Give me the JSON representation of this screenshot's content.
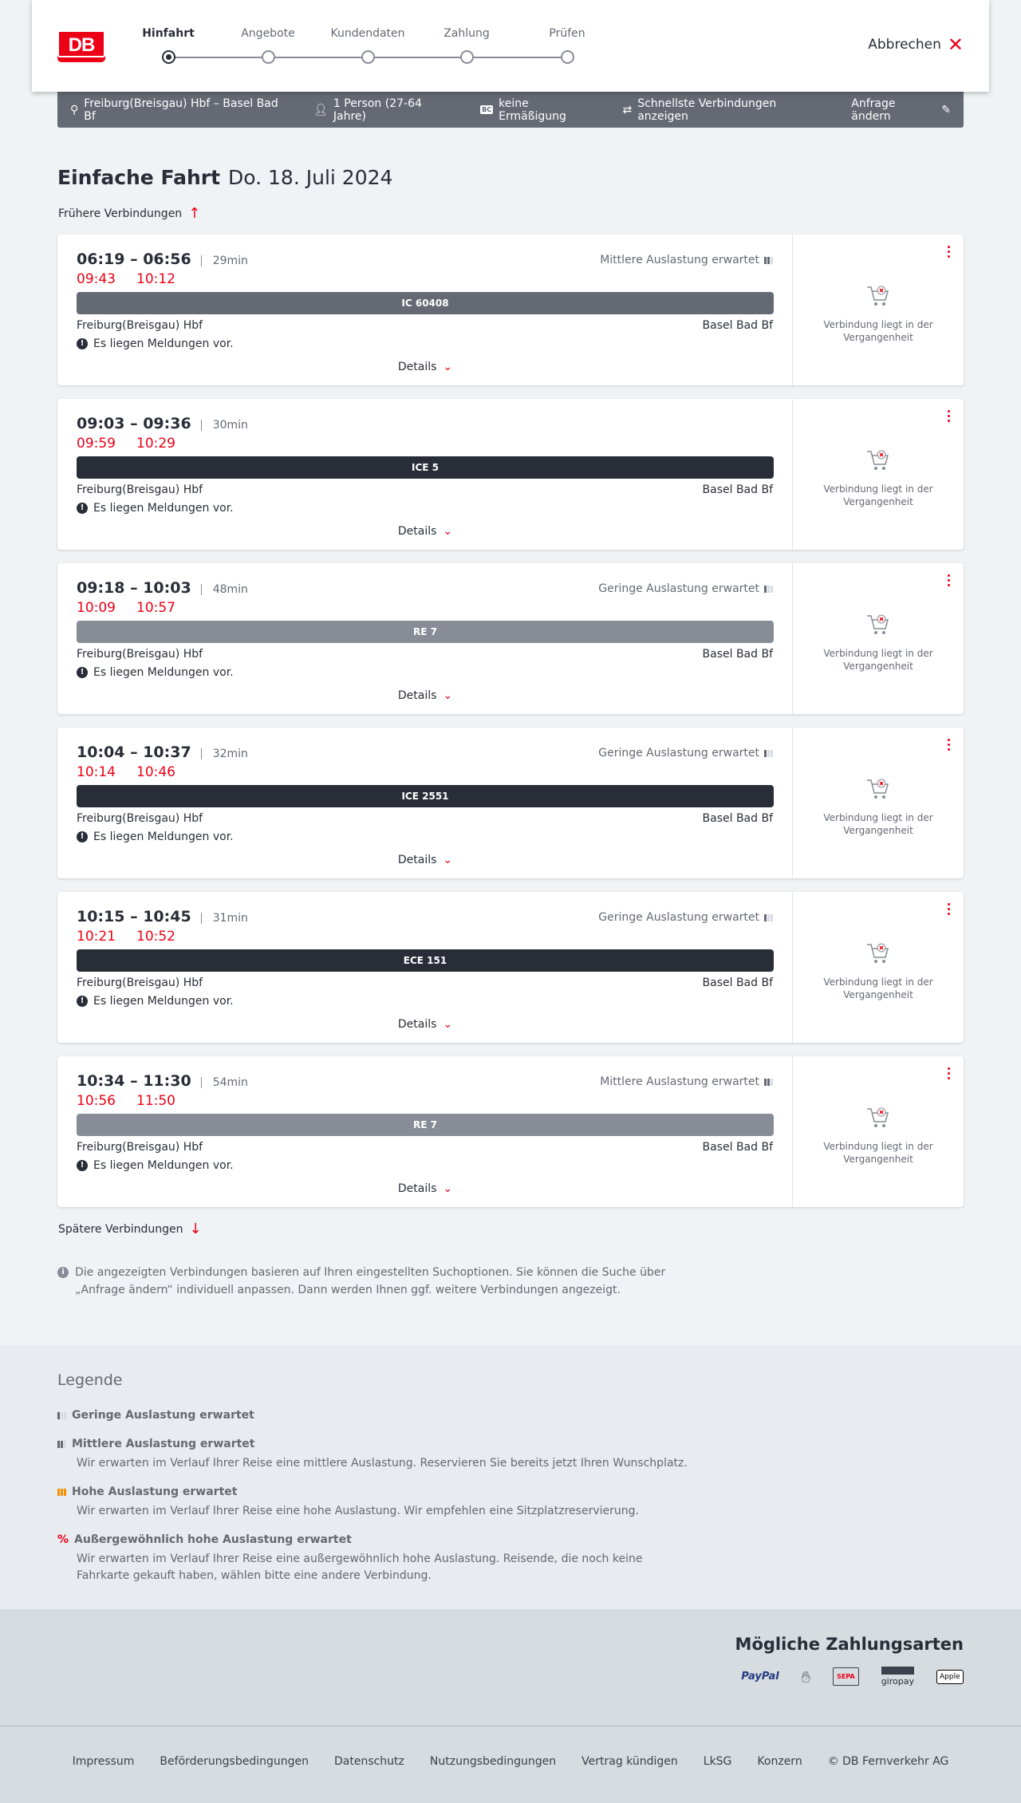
{
  "header": {
    "logo": "DB",
    "steps": [
      "Hinfahrt",
      "Angebote",
      "Kundendaten",
      "Zahlung",
      "Prüfen"
    ],
    "active_step": 0,
    "cancel": "Abbrechen"
  },
  "query": {
    "route": "Freiburg(Breisgau) Hbf – Basel Bad Bf",
    "persons": "1 Person (27-64 Jahre)",
    "discount_badge": "BC",
    "discount": "keine Ermäßigung",
    "fastest": "Schnellste Verbindungen anzeigen",
    "change": "Anfrage ändern"
  },
  "title": {
    "type": "Einfache Fahrt",
    "date": "Do. 18. Juli 2024"
  },
  "earlier": "Frühere Verbindungen",
  "later": "Spätere Verbindungen",
  "colors": {
    "accent": "#ec0016",
    "IC": "#646973",
    "ICE": "#282d37",
    "RE": "#878c96"
  },
  "connections": [
    {
      "time": "06:19 – 06:56",
      "duration": "29min",
      "occupancy": "Mittlere Auslastung erwartet",
      "occ_level": 2,
      "rt_dep": "09:43",
      "rt_arr": "10:12",
      "train": "IC 60408",
      "color": "#646973",
      "from": "Freiburg(Breisgau) Hbf",
      "to": "Basel Bad Bf",
      "message": "Es liegen Meldungen vor.",
      "details": "Details",
      "status": "Verbindung liegt in der Vergangenheit"
    },
    {
      "time": "09:03 – 09:36",
      "duration": "30min",
      "occupancy": "",
      "occ_level": 0,
      "rt_dep": "09:59",
      "rt_arr": "10:29",
      "train": "ICE 5",
      "color": "#282d37",
      "from": "Freiburg(Breisgau) Hbf",
      "to": "Basel Bad Bf",
      "message": "Es liegen Meldungen vor.",
      "details": "Details",
      "status": "Verbindung liegt in der Vergangenheit"
    },
    {
      "time": "09:18 – 10:03",
      "duration": "48min",
      "occupancy": "Geringe Auslastung erwartet",
      "occ_level": 1,
      "rt_dep": "10:09",
      "rt_arr": "10:57",
      "train": "RE 7",
      "color": "#878c96",
      "from": "Freiburg(Breisgau) Hbf",
      "to": "Basel Bad Bf",
      "message": "Es liegen Meldungen vor.",
      "details": "Details",
      "status": "Verbindung liegt in der Vergangenheit"
    },
    {
      "time": "10:04 – 10:37",
      "duration": "32min",
      "occupancy": "Geringe Auslastung erwartet",
      "occ_level": 1,
      "rt_dep": "10:14",
      "rt_arr": "10:46",
      "train": "ICE 2551",
      "color": "#282d37",
      "from": "Freiburg(Breisgau) Hbf",
      "to": "Basel Bad Bf",
      "message": "Es liegen Meldungen vor.",
      "details": "Details",
      "status": "Verbindung liegt in der Vergangenheit"
    },
    {
      "time": "10:15 – 10:45",
      "duration": "31min",
      "occupancy": "Geringe Auslastung erwartet",
      "occ_level": 1,
      "rt_dep": "10:21",
      "rt_arr": "10:52",
      "train": "ECE 151",
      "color": "#282d37",
      "from": "Freiburg(Breisgau) Hbf",
      "to": "Basel Bad Bf",
      "message": "Es liegen Meldungen vor.",
      "details": "Details",
      "status": "Verbindung liegt in der Vergangenheit"
    },
    {
      "time": "10:34 – 11:30",
      "duration": "54min",
      "occupancy": "Mittlere Auslastung erwartet",
      "occ_level": 2,
      "rt_dep": "10:56",
      "rt_arr": "11:50",
      "train": "RE 7",
      "color": "#878c96",
      "from": "Freiburg(Breisgau) Hbf",
      "to": "Basel Bad Bf",
      "message": "Es liegen Meldungen vor.",
      "details": "Details",
      "status": "Verbindung liegt in der Vergangenheit"
    }
  ],
  "info": "Die angezeigten Verbindungen basieren auf Ihren eingestellten Suchoptionen. Sie können die Suche über „Anfrage ändern“ individuell anpassen. Dann werden Ihnen ggf. weitere Verbindungen angezeigt.",
  "legend": {
    "title": "Legende",
    "items": [
      {
        "title": "Geringe Auslastung erwartet",
        "desc": ""
      },
      {
        "title": "Mittlere Auslastung erwartet",
        "desc": "Wir erwarten im Verlauf Ihrer Reise eine mittlere Auslastung. Reservieren Sie bereits jetzt Ihren Wunschplatz."
      },
      {
        "title": "Hohe Auslastung erwartet",
        "desc": "Wir erwarten im Verlauf Ihrer Reise eine hohe Auslastung. Wir empfehlen eine Sitzplatzreservierung."
      },
      {
        "title": "Außergewöhnlich hohe Auslastung erwartet",
        "desc": "Wir erwarten im Verlauf Ihrer Reise eine außergewöhnlich hohe Auslastung. Reisende, die noch keine Fahrkarte gekauft haben, wählen bitte eine andere Verbindung."
      }
    ]
  },
  "payment": {
    "title": "Mögliche Zahlungsarten",
    "methods": [
      "PayPal",
      "Kreditkarte",
      "SEPA",
      "giropay",
      "Apple Pay"
    ]
  },
  "footer": [
    "Impressum",
    "Beförderungsbedingungen",
    "Datenschutz",
    "Nutzungsbedingungen",
    "Vertrag kündigen",
    "LkSG",
    "Konzern",
    "© DB Fernverkehr AG"
  ]
}
